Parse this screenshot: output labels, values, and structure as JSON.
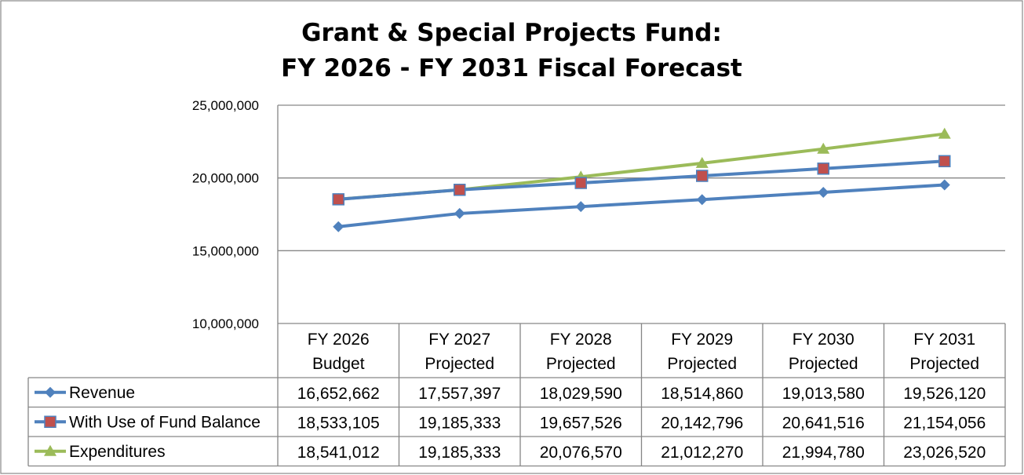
{
  "chart_data": {
    "type": "line",
    "title_lines": [
      "Grant & Special Projects Fund:",
      "FY 2026 - FY 2031 Fiscal Forecast"
    ],
    "categories": [
      [
        "FY 2026",
        "Budget"
      ],
      [
        "FY 2027",
        "Projected"
      ],
      [
        "FY 2028",
        "Projected"
      ],
      [
        "FY 2029",
        "Projected"
      ],
      [
        "FY 2030",
        "Projected"
      ],
      [
        "FY 2031",
        "Projected"
      ]
    ],
    "ylim": [
      10000000,
      25000000
    ],
    "yticks": [
      10000000,
      15000000,
      20000000,
      25000000
    ],
    "ytick_labels": [
      "10,000,000",
      "15,000,000",
      "20,000,000",
      "25,000,000"
    ],
    "grid": true,
    "legend": "data-table",
    "series": [
      {
        "name": "Revenue",
        "color": "#4F81BD",
        "marker": "diamond",
        "values": [
          16652662,
          17557397,
          18029590,
          18514860,
          19013580,
          19526120
        ],
        "labels": [
          "16,652,662",
          "17,557,397",
          "18,029,590",
          "18,514,860",
          "19,013,580",
          "19,526,120"
        ]
      },
      {
        "name": "With Use of Fund Balance",
        "color": "#4F81BD",
        "marker_color": "#C0504D",
        "marker": "square",
        "values": [
          18533105,
          19185333,
          19657526,
          20142796,
          20641516,
          21154056
        ],
        "labels": [
          "18,533,105",
          "19,185,333",
          "19,657,526",
          "20,142,796",
          "20,641,516",
          "21,154,056"
        ]
      },
      {
        "name": "Expenditures",
        "color": "#9BBB59",
        "marker": "triangle",
        "values": [
          18541012,
          19185333,
          20076570,
          21012270,
          21994780,
          23026520
        ],
        "labels": [
          "18,541,012",
          "19,185,333",
          "20,076,570",
          "21,012,270",
          "21,994,780",
          "23,026,520"
        ]
      }
    ]
  }
}
